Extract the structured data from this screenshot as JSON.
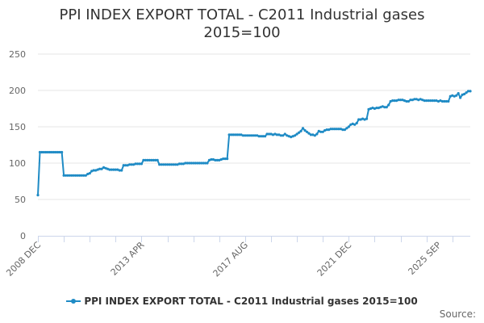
{
  "colors": {
    "series": "#1f8bc5",
    "grid": "#e6e6e6",
    "axis": "#ccd6eb",
    "text": "#666666"
  },
  "source_label": "Source:",
  "chart_data": {
    "type": "line",
    "title_lines": [
      "PPI INDEX EXPORT TOTAL - C2011 Industrial gases",
      "2015=100"
    ],
    "xlabel": "",
    "ylabel": "",
    "ylim": [
      0,
      250
    ],
    "yticks": [
      0,
      50,
      100,
      150,
      200,
      250
    ],
    "x_tick_labels": [
      {
        "label": "2008 DEC",
        "index": 0
      },
      {
        "label": "2013 APR",
        "index": 52
      },
      {
        "label": "2017 AUG",
        "index": 104
      },
      {
        "label": "2021 DEC",
        "index": 156
      },
      {
        "label": "2025 SEP",
        "index": 201
      }
    ],
    "legend": "PPI INDEX EXPORT TOTAL - C2011 Industrial gases 2015=100",
    "series": [
      {
        "name": "PPI INDEX EXPORT TOTAL - C2011 Industrial gases 2015=100",
        "values": [
          56,
          115,
          115,
          115,
          115,
          115,
          115,
          115,
          115,
          115,
          115,
          115,
          115,
          83,
          83,
          83,
          83,
          83,
          83,
          83,
          83,
          83,
          83,
          83,
          83,
          85,
          86,
          89,
          90,
          90,
          91,
          92,
          92,
          94,
          93,
          92,
          91,
          91,
          91,
          91,
          91,
          90,
          90,
          97,
          97,
          97,
          98,
          98,
          98,
          99,
          99,
          99,
          99,
          104,
          104,
          104,
          104,
          104,
          104,
          104,
          104,
          98,
          98,
          98,
          98,
          98,
          98,
          98,
          98,
          98,
          98,
          99,
          99,
          99,
          100,
          100,
          100,
          100,
          100,
          100,
          100,
          100,
          100,
          100,
          100,
          100,
          104,
          105,
          105,
          104,
          104,
          104,
          105,
          106,
          106,
          106,
          139,
          139,
          139,
          139,
          139,
          139,
          139,
          138,
          138,
          138,
          138,
          138,
          138,
          138,
          138,
          137,
          137,
          137,
          137,
          140,
          140,
          140,
          139,
          140,
          139,
          139,
          138,
          138,
          140,
          138,
          137,
          136,
          137,
          138,
          140,
          142,
          144,
          148,
          145,
          143,
          141,
          139,
          139,
          138,
          140,
          144,
          143,
          143,
          145,
          146,
          146,
          147,
          147,
          147,
          147,
          147,
          147,
          146,
          146,
          148,
          150,
          153,
          154,
          153,
          155,
          160,
          160,
          161,
          160,
          161,
          174,
          175,
          176,
          175,
          176,
          176,
          177,
          178,
          177,
          177,
          180,
          185,
          186,
          186,
          186,
          187,
          187,
          187,
          186,
          185,
          185,
          187,
          187,
          188,
          188,
          187,
          188,
          187,
          186,
          186,
          186,
          186,
          186,
          186,
          186,
          185,
          186,
          185,
          185,
          185,
          185,
          192,
          193,
          192,
          193,
          196,
          190,
          194,
          195,
          197,
          199,
          199
        ]
      }
    ]
  }
}
